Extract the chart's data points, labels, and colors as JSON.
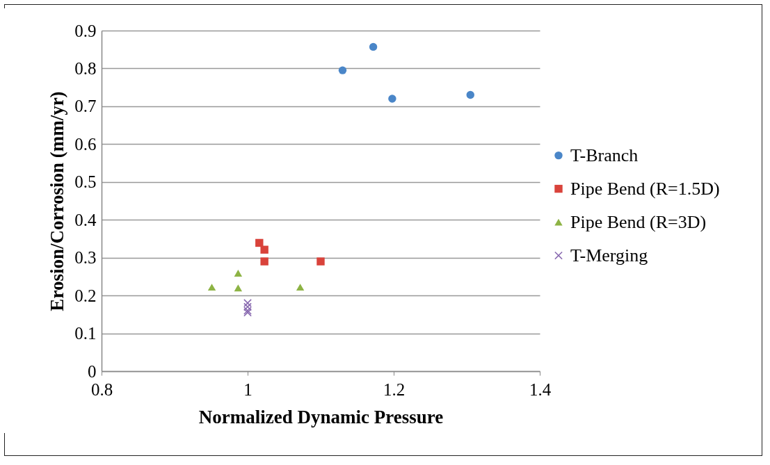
{
  "chart_data": {
    "type": "scatter",
    "xlabel": "Normalized Dynamic Pressure",
    "ylabel": "Erosion/Corrosion (mm/yr)",
    "xlim": [
      0.8,
      1.4
    ],
    "xticks": [
      0.8,
      1,
      1.2,
      1.4
    ],
    "ylim": [
      0,
      0.9
    ],
    "yticks": [
      0,
      0.1,
      0.2,
      0.3,
      0.4,
      0.5,
      0.6,
      0.7,
      0.8,
      0.9
    ],
    "grid": "y",
    "legend": "right",
    "series": [
      {
        "name": "T-Branch",
        "color": "#4a86c8",
        "marker": "circle",
        "x": [
          1.13,
          1.172,
          1.198,
          1.305
        ],
        "values": [
          0.795,
          0.857,
          0.72,
          0.73
        ]
      },
      {
        "name": "Pipe Bend (R=1.5D)",
        "color": "#d9433b",
        "marker": "square",
        "x": [
          1.016,
          1.023,
          1.023,
          1.1
        ],
        "values": [
          0.339,
          0.321,
          0.29,
          0.29
        ]
      },
      {
        "name": "Pipe Bend (R=3D)",
        "color": "#8db344",
        "marker": "triangle",
        "x": [
          0.951,
          0.987,
          0.987,
          1.072
        ],
        "values": [
          0.222,
          0.259,
          0.22,
          0.222
        ]
      },
      {
        "name": "T-Merging",
        "color": "#8a6bb1",
        "marker": "cross",
        "x": [
          1,
          1,
          1,
          1
        ],
        "values": [
          0.18,
          0.17,
          0.16,
          0.155
        ]
      }
    ]
  }
}
